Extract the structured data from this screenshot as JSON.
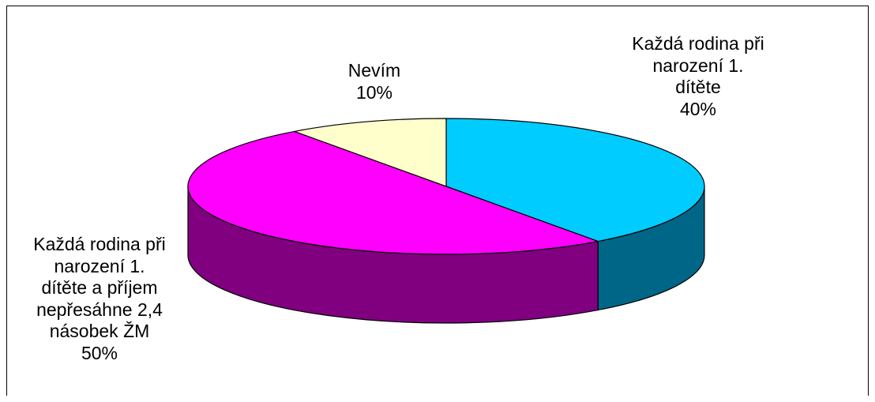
{
  "chart_data": {
    "type": "pie",
    "style": "3d",
    "title": "",
    "slices": [
      {
        "name": "Každá rodina při narození 1. dítěte",
        "label_lines": [
          "Každá rodina při",
          "narození 1.",
          "dítěte"
        ],
        "value": 40,
        "value_label": "40%",
        "top_color": "#00CCFF",
        "side_color": "#006688"
      },
      {
        "name": "Každá rodina při narození 1. dítěte a příjem nepřesáhne 2,4 násobek ŽM",
        "label_lines": [
          "Každá rodina při",
          "narození 1.",
          "dítěte a příjem",
          "nepřesáhne 2,4",
          "násobek ŽM"
        ],
        "value": 50,
        "value_label": "50%",
        "top_color": "#FF00FF",
        "side_color": "#800080"
      },
      {
        "name": "Nevím",
        "label_lines": [
          "Nevím"
        ],
        "value": 10,
        "value_label": "10%",
        "top_color": "#FFFFCC",
        "side_color": "#808066"
      }
    ]
  }
}
